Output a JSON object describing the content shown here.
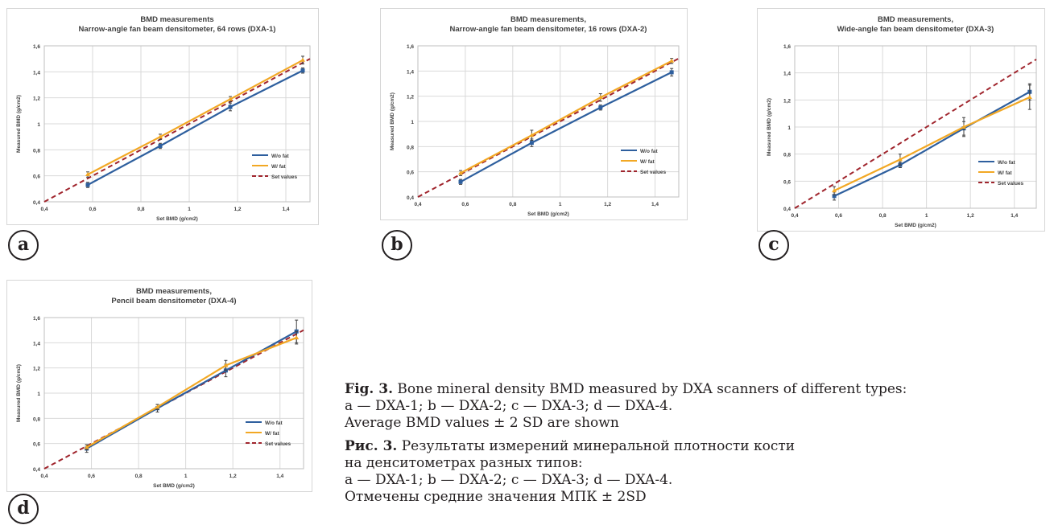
{
  "charts": [
    {
      "id": "a",
      "badge": "a",
      "title_line1": "BMD measurements",
      "title_line2": "Narrow-angle fan beam densitometer, 64 rows (DXA-1)"
    },
    {
      "id": "b",
      "badge": "b",
      "title_line1": "BMD measurements,",
      "title_line2": "Narrow-angle fan beam densitometer, 16 rows (DXA-2)"
    },
    {
      "id": "c",
      "badge": "c",
      "title_line1": "BMD measurements,",
      "title_line2": "Wide-angle fan beam densitometer (DXA-3)"
    },
    {
      "id": "d",
      "badge": "d",
      "title_line1": "BMD measurements,",
      "title_line2": "Pencil beam densitometer (DXA-4)"
    }
  ],
  "axis": {
    "xlabel": "Set BMD (g/cm2)",
    "ylabel": "Measured BMD (g/cm2)",
    "ticks": [
      "0,4",
      "0,6",
      "0,8",
      "1",
      "1,2",
      "1,4",
      "1,6"
    ]
  },
  "legend": {
    "wo_fat": "W/o fat",
    "w_fat": "W/ fat",
    "set_values": "Set values"
  },
  "colors": {
    "wo_fat": "#2e5f9e",
    "w_fat": "#f2a824",
    "set_values": "#a0252d",
    "grid": "#d9d9d9",
    "axis": "#808080"
  },
  "chart_data": [
    {
      "type": "line",
      "title": "BMD measurements Narrow-angle fan beam densitometer, 64 rows (DXA-1)",
      "xlabel": "Set BMD (g/cm2)",
      "ylabel": "Measured BMD (g/cm2)",
      "xlim": [
        0.4,
        1.5
      ],
      "ylim": [
        0.4,
        1.6
      ],
      "grid": true,
      "legend_position": "lower-right",
      "x": [
        0.58,
        0.88,
        1.17,
        1.47
      ],
      "series": [
        {
          "name": "W/o fat",
          "values": [
            0.53,
            0.83,
            1.13,
            1.41
          ],
          "errors": [
            0.02,
            0.02,
            0.03,
            0.02
          ]
        },
        {
          "name": "W/ fat",
          "values": [
            0.61,
            0.9,
            1.19,
            1.49
          ],
          "errors": [
            0.02,
            0.02,
            0.02,
            0.03
          ]
        },
        {
          "name": "Set values",
          "x": [
            0.4,
            1.5
          ],
          "values": [
            0.4,
            1.5
          ]
        }
      ]
    },
    {
      "type": "line",
      "title": "BMD measurements, Narrow-angle fan beam densitometer, 16 rows (DXA-2)",
      "xlabel": "Set BMD (g/cm2)",
      "ylabel": "Measured BMD (g/cm2)",
      "xlim": [
        0.4,
        1.5
      ],
      "ylim": [
        0.4,
        1.6
      ],
      "grid": true,
      "legend_position": "lower-right",
      "x": [
        0.58,
        0.88,
        1.17,
        1.47
      ],
      "series": [
        {
          "name": "W/o fat",
          "values": [
            0.52,
            0.83,
            1.11,
            1.39
          ],
          "errors": [
            0.02,
            0.03,
            0.02,
            0.03
          ]
        },
        {
          "name": "W/ fat",
          "values": [
            0.59,
            0.89,
            1.19,
            1.48
          ],
          "errors": [
            0.02,
            0.04,
            0.03,
            0.02
          ]
        },
        {
          "name": "Set values",
          "x": [
            0.4,
            1.5
          ],
          "values": [
            0.4,
            1.5
          ]
        }
      ]
    },
    {
      "type": "line",
      "title": "BMD measurements, Wide-angle fan beam densitometer (DXA-3)",
      "xlabel": "Set BMD (g/cm2)",
      "ylabel": "Measured BMD (g/cm2)",
      "xlim": [
        0.4,
        1.5
      ],
      "ylim": [
        0.4,
        1.6
      ],
      "grid": true,
      "legend_position": "lower-right",
      "x": [
        0.58,
        0.88,
        1.17,
        1.47
      ],
      "series": [
        {
          "name": "W/o fat",
          "values": [
            0.49,
            0.72,
            0.99,
            1.26
          ],
          "errors": [
            0.03,
            0.02,
            0.05,
            0.06
          ]
        },
        {
          "name": "W/ fat",
          "values": [
            0.53,
            0.76,
            1.0,
            1.22
          ],
          "errors": [
            0.03,
            0.04,
            0.07,
            0.09
          ]
        },
        {
          "name": "Set values",
          "x": [
            0.4,
            1.5
          ],
          "values": [
            0.4,
            1.5
          ]
        }
      ]
    },
    {
      "type": "line",
      "title": "BMD measurements, Pencil beam densitometer (DXA-4)",
      "xlabel": "Set BMD (g/cm2)",
      "ylabel": "Measured BMD (g/cm2)",
      "xlim": [
        0.4,
        1.5
      ],
      "ylim": [
        0.4,
        1.6
      ],
      "grid": true,
      "legend_position": "lower-right",
      "x": [
        0.58,
        0.88,
        1.17,
        1.47
      ],
      "series": [
        {
          "name": "W/o fat",
          "values": [
            0.56,
            0.88,
            1.18,
            1.49
          ],
          "errors": [
            0.03,
            0.03,
            0.05,
            0.09
          ]
        },
        {
          "name": "W/ fat",
          "values": [
            0.57,
            0.89,
            1.22,
            1.44
          ],
          "errors": [
            0.02,
            0.02,
            0.04,
            0.05
          ]
        },
        {
          "name": "Set values",
          "x": [
            0.4,
            1.5
          ],
          "values": [
            0.4,
            1.5
          ]
        }
      ]
    }
  ],
  "caption": {
    "en_label": "Fig. 3.",
    "en_text_1": " Bone mineral density BMD measured by DXA scanners of different types:",
    "en_text_2": "a — DXA-1; b — DXA-2; c — DXA-3; d — DXA-4.",
    "en_text_3": "Average BMD values ± 2 SD are shown",
    "ru_label": "Рис. 3.",
    "ru_text_1": " Результаты измерений минеральной плотности кости",
    "ru_text_2": "на денситометрах разных типов:",
    "ru_text_3": "a — DXA-1; b — DXA-2; c — DXA-3; d — DXA-4.",
    "ru_text_4": "Отмечены средние значения МПК ± 2SD"
  }
}
